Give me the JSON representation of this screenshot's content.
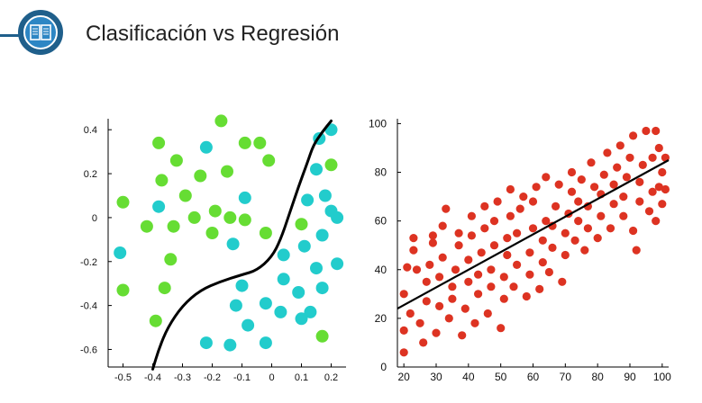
{
  "header": {
    "title": "Clasificación vs Regresión",
    "icon": "book-icon",
    "accent_color": "#1f5f8b"
  },
  "chart_data": [
    {
      "type": "scatter",
      "title": "",
      "xlabel": "",
      "ylabel": "",
      "xlim": [
        -0.55,
        0.25
      ],
      "ylim": [
        -0.68,
        0.45
      ],
      "x_ticks": [
        -0.5,
        -0.4,
        -0.3,
        -0.2,
        -0.1,
        0,
        0.1,
        0.2
      ],
      "x_tick_labels": [
        "-0.5",
        "-0.4",
        "-0.3",
        "-0.2",
        "-0.1",
        "0",
        "0.1",
        "0.2"
      ],
      "y_ticks": [
        0.4,
        0.2,
        0,
        -0.2,
        -0.4,
        -0.6
      ],
      "y_tick_labels": [
        "0.4",
        "0.2",
        "0",
        "-0.2",
        "-0.4",
        "-0.6"
      ],
      "grid": false,
      "series": [
        {
          "color": "#66dd33",
          "points": [
            [
              -0.17,
              0.44
            ],
            [
              -0.38,
              0.34
            ],
            [
              -0.32,
              0.26
            ],
            [
              -0.09,
              0.34
            ],
            [
              -0.04,
              0.34
            ],
            [
              -0.01,
              0.26
            ],
            [
              -0.37,
              0.17
            ],
            [
              -0.24,
              0.19
            ],
            [
              -0.15,
              0.21
            ],
            [
              -0.5,
              0.07
            ],
            [
              -0.29,
              0.1
            ],
            [
              -0.19,
              0.03
            ],
            [
              -0.42,
              -0.04
            ],
            [
              -0.33,
              -0.04
            ],
            [
              -0.26,
              0.0
            ],
            [
              -0.14,
              0.0
            ],
            [
              -0.2,
              -0.07
            ],
            [
              -0.09,
              -0.01
            ],
            [
              -0.34,
              -0.19
            ],
            [
              -0.02,
              -0.07
            ],
            [
              -0.5,
              -0.33
            ],
            [
              -0.36,
              -0.32
            ],
            [
              -0.39,
              -0.47
            ],
            [
              0.1,
              -0.03
            ],
            [
              0.17,
              -0.54
            ],
            [
              0.2,
              0.24
            ]
          ]
        },
        {
          "color": "#22cccc",
          "points": [
            [
              -0.22,
              0.32
            ],
            [
              0.2,
              0.4
            ],
            [
              0.16,
              0.36
            ],
            [
              0.18,
              0.1
            ],
            [
              0.12,
              0.08
            ],
            [
              0.2,
              0.03
            ],
            [
              0.15,
              0.22
            ],
            [
              -0.38,
              0.05
            ],
            [
              -0.09,
              0.09
            ],
            [
              0.17,
              -0.08
            ],
            [
              -0.13,
              -0.12
            ],
            [
              0.04,
              -0.17
            ],
            [
              0.11,
              -0.13
            ],
            [
              0.22,
              -0.21
            ],
            [
              0.15,
              -0.23
            ],
            [
              -0.1,
              -0.31
            ],
            [
              0.04,
              -0.28
            ],
            [
              0.09,
              -0.34
            ],
            [
              0.17,
              -0.32
            ],
            [
              -0.12,
              -0.4
            ],
            [
              -0.02,
              -0.39
            ],
            [
              0.03,
              -0.43
            ],
            [
              0.13,
              -0.43
            ],
            [
              -0.08,
              -0.49
            ],
            [
              0.1,
              -0.46
            ],
            [
              -0.22,
              -0.57
            ],
            [
              -0.14,
              -0.58
            ],
            [
              -0.02,
              -0.57
            ],
            [
              0.22,
              0.0
            ],
            [
              -0.51,
              -0.16
            ]
          ]
        }
      ],
      "decision_curve": [
        [
          -0.4,
          -0.69
        ],
        [
          -0.38,
          -0.6
        ],
        [
          -0.35,
          -0.5
        ],
        [
          -0.3,
          -0.4
        ],
        [
          -0.24,
          -0.33
        ],
        [
          -0.17,
          -0.29
        ],
        [
          -0.1,
          -0.26
        ],
        [
          -0.05,
          -0.24
        ],
        [
          0.0,
          -0.18
        ],
        [
          0.03,
          -0.1
        ],
        [
          0.06,
          0.02
        ],
        [
          0.09,
          0.14
        ],
        [
          0.12,
          0.25
        ],
        [
          0.14,
          0.33
        ],
        [
          0.17,
          0.39
        ],
        [
          0.2,
          0.44
        ]
      ]
    },
    {
      "type": "scatter",
      "title": "",
      "xlabel": "",
      "ylabel": "",
      "xlim": [
        18,
        102
      ],
      "ylim": [
        0,
        102
      ],
      "x_ticks": [
        20,
        30,
        40,
        50,
        60,
        70,
        80,
        90,
        100
      ],
      "x_tick_labels": [
        "20",
        "30",
        "40",
        "50",
        "60",
        "70",
        "80",
        "90",
        "100"
      ],
      "y_ticks": [
        0,
        20,
        40,
        60,
        80,
        100
      ],
      "y_tick_labels": [
        "0",
        "20",
        "40",
        "60",
        "80",
        "100"
      ],
      "grid": false,
      "series": [
        {
          "color": "#dd3322",
          "points": [
            [
              20,
              6
            ],
            [
              20,
              15
            ],
            [
              20,
              30
            ],
            [
              21,
              41
            ],
            [
              22,
              22
            ],
            [
              23,
              48
            ],
            [
              23,
              53
            ],
            [
              24,
              40
            ],
            [
              25,
              18
            ],
            [
              26,
              10
            ],
            [
              27,
              27
            ],
            [
              27,
              35
            ],
            [
              28,
              42
            ],
            [
              29,
              51
            ],
            [
              29,
              54
            ],
            [
              30,
              14
            ],
            [
              31,
              25
            ],
            [
              31,
              37
            ],
            [
              32,
              45
            ],
            [
              32,
              58
            ],
            [
              33,
              65
            ],
            [
              34,
              20
            ],
            [
              35,
              28
            ],
            [
              35,
              33
            ],
            [
              36,
              40
            ],
            [
              37,
              50
            ],
            [
              37,
              55
            ],
            [
              38,
              13
            ],
            [
              39,
              24
            ],
            [
              40,
              35
            ],
            [
              40,
              44
            ],
            [
              41,
              54
            ],
            [
              41,
              62
            ],
            [
              42,
              18
            ],
            [
              43,
              30
            ],
            [
              43,
              38
            ],
            [
              44,
              47
            ],
            [
              45,
              57
            ],
            [
              45,
              66
            ],
            [
              46,
              22
            ],
            [
              47,
              33
            ],
            [
              47,
              40
            ],
            [
              48,
              50
            ],
            [
              48,
              60
            ],
            [
              49,
              68
            ],
            [
              50,
              16
            ],
            [
              51,
              28
            ],
            [
              51,
              37
            ],
            [
              52,
              46
            ],
            [
              52,
              53
            ],
            [
              53,
              62
            ],
            [
              53,
              73
            ],
            [
              54,
              33
            ],
            [
              55,
              42
            ],
            [
              55,
              55
            ],
            [
              56,
              65
            ],
            [
              57,
              70
            ],
            [
              58,
              29
            ],
            [
              59,
              38
            ],
            [
              59,
              47
            ],
            [
              60,
              57
            ],
            [
              60,
              68
            ],
            [
              61,
              74
            ],
            [
              62,
              32
            ],
            [
              63,
              43
            ],
            [
              63,
              52
            ],
            [
              64,
              60
            ],
            [
              64,
              78
            ],
            [
              65,
              39
            ],
            [
              66,
              49
            ],
            [
              66,
              58
            ],
            [
              67,
              66
            ],
            [
              68,
              75
            ],
            [
              69,
              35
            ],
            [
              70,
              46
            ],
            [
              70,
              55
            ],
            [
              71,
              63
            ],
            [
              72,
              72
            ],
            [
              72,
              80
            ],
            [
              73,
              52
            ],
            [
              74,
              60
            ],
            [
              74,
              68
            ],
            [
              75,
              77
            ],
            [
              76,
              48
            ],
            [
              77,
              57
            ],
            [
              77,
              66
            ],
            [
              78,
              84
            ],
            [
              79,
              74
            ],
            [
              80,
              53
            ],
            [
              81,
              62
            ],
            [
              81,
              71
            ],
            [
              82,
              79
            ],
            [
              83,
              88
            ],
            [
              84,
              57
            ],
            [
              85,
              67
            ],
            [
              85,
              75
            ],
            [
              86,
              82
            ],
            [
              87,
              91
            ],
            [
              88,
              62
            ],
            [
              88,
              70
            ],
            [
              89,
              78
            ],
            [
              90,
              86
            ],
            [
              91,
              95
            ],
            [
              92,
              48
            ],
            [
              93,
              68
            ],
            [
              93,
              76
            ],
            [
              94,
              83
            ],
            [
              95,
              97
            ],
            [
              96,
              64
            ],
            [
              97,
              72
            ],
            [
              97,
              86
            ],
            [
              98,
              60
            ],
            [
              99,
              74
            ],
            [
              99,
              90
            ],
            [
              100,
              67
            ],
            [
              101,
              73
            ],
            [
              100,
              80
            ],
            [
              98,
              97
            ],
            [
              101,
              86
            ],
            [
              91,
              56
            ]
          ]
        }
      ],
      "regression_line": {
        "x": [
          18,
          102
        ],
        "y": [
          24,
          85
        ],
        "color": "#000000"
      }
    }
  ]
}
